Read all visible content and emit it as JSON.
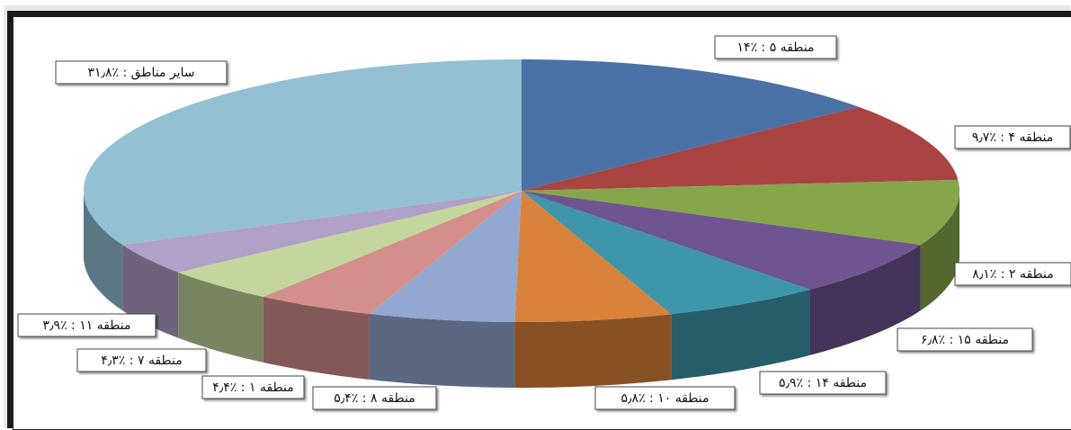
{
  "chart_data": {
    "type": "pie",
    "title": "",
    "slices": [
      {
        "label": "منطقه ۵ : ٪۱۴",
        "value": 14.0,
        "color": "#4a72a6"
      },
      {
        "label": "منطقه ۴ : ٪۹٫۷",
        "value": 9.7,
        "color": "#a94442"
      },
      {
        "label": "منطقه ۲ : ٪۸٫۱",
        "value": 8.1,
        "color": "#86a64b"
      },
      {
        "label": "منطقه ۱۵ : ٪۶٫۸",
        "value": 6.8,
        "color": "#6e5490"
      },
      {
        "label": "منطقه ۱۴ : ٪۵٫۹",
        "value": 5.9,
        "color": "#3d96aa"
      },
      {
        "label": "منطقه ۱۰ : ٪۵٫۸",
        "value": 5.8,
        "color": "#d9823b"
      },
      {
        "label": "منطقه ۸ : ٪۵٫۴",
        "value": 5.4,
        "color": "#93a8d0"
      },
      {
        "label": "منطقه ۱ : ٪۴٫۴",
        "value": 4.4,
        "color": "#d48f8d"
      },
      {
        "label": "منطقه ۷ : ٪۴٫۳",
        "value": 4.3,
        "color": "#c3d69b"
      },
      {
        "label": "منطقه ۱۱ : ٪۳٫۹",
        "value": 3.9,
        "color": "#b1a0c7"
      },
      {
        "label": "سایر مناطق : ٪۳۱٫۸",
        "value": 31.8,
        "color": "#93c0d3"
      }
    ],
    "legend": "none",
    "style": "3d-exploded-none"
  }
}
